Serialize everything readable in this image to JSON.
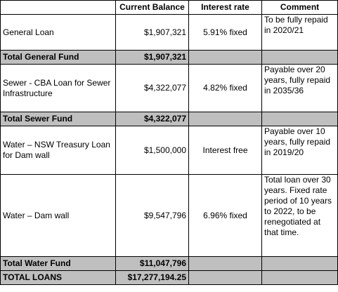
{
  "headers": {
    "description": "",
    "balance": "Current Balance",
    "rate": "Interest rate",
    "comment": "Comment"
  },
  "rows": [
    {
      "description": "General Loan",
      "balance": "$1,907,321",
      "rate": "5.91% fixed",
      "comment": "To be fully repaid in 2020/21"
    },
    {
      "description": "Total General Fund",
      "balance": "$1,907,321",
      "rate": "",
      "comment": ""
    },
    {
      "description": "Sewer - CBA Loan for Sewer Infrastructure",
      "balance": "$4,322,077",
      "rate": "4.82% fixed",
      "comment": "Payable over 20 years, fully repaid in 2035/36"
    },
    {
      "description": "Total Sewer Fund",
      "balance": "$4,322,077",
      "rate": "",
      "comment": ""
    },
    {
      "description": "Water – NSW Treasury Loan for Dam wall",
      "balance": "$1,500,000",
      "rate": "Interest free",
      "comment": "Payable over 10 years, fully repaid in 2019/20"
    },
    {
      "description": "Water – Dam wall",
      "balance": "$9,547,796",
      "rate": "6.96% fixed",
      "comment": "Total loan over 30 years. Fixed rate period of 10 years to 2022, to be renegotiated at that time."
    },
    {
      "description": "Total Water Fund",
      "balance": "$11,047,796",
      "rate": "",
      "comment": ""
    },
    {
      "description": "TOTAL LOANS",
      "balance": "$17,277,194.25",
      "rate": "",
      "comment": ""
    }
  ]
}
